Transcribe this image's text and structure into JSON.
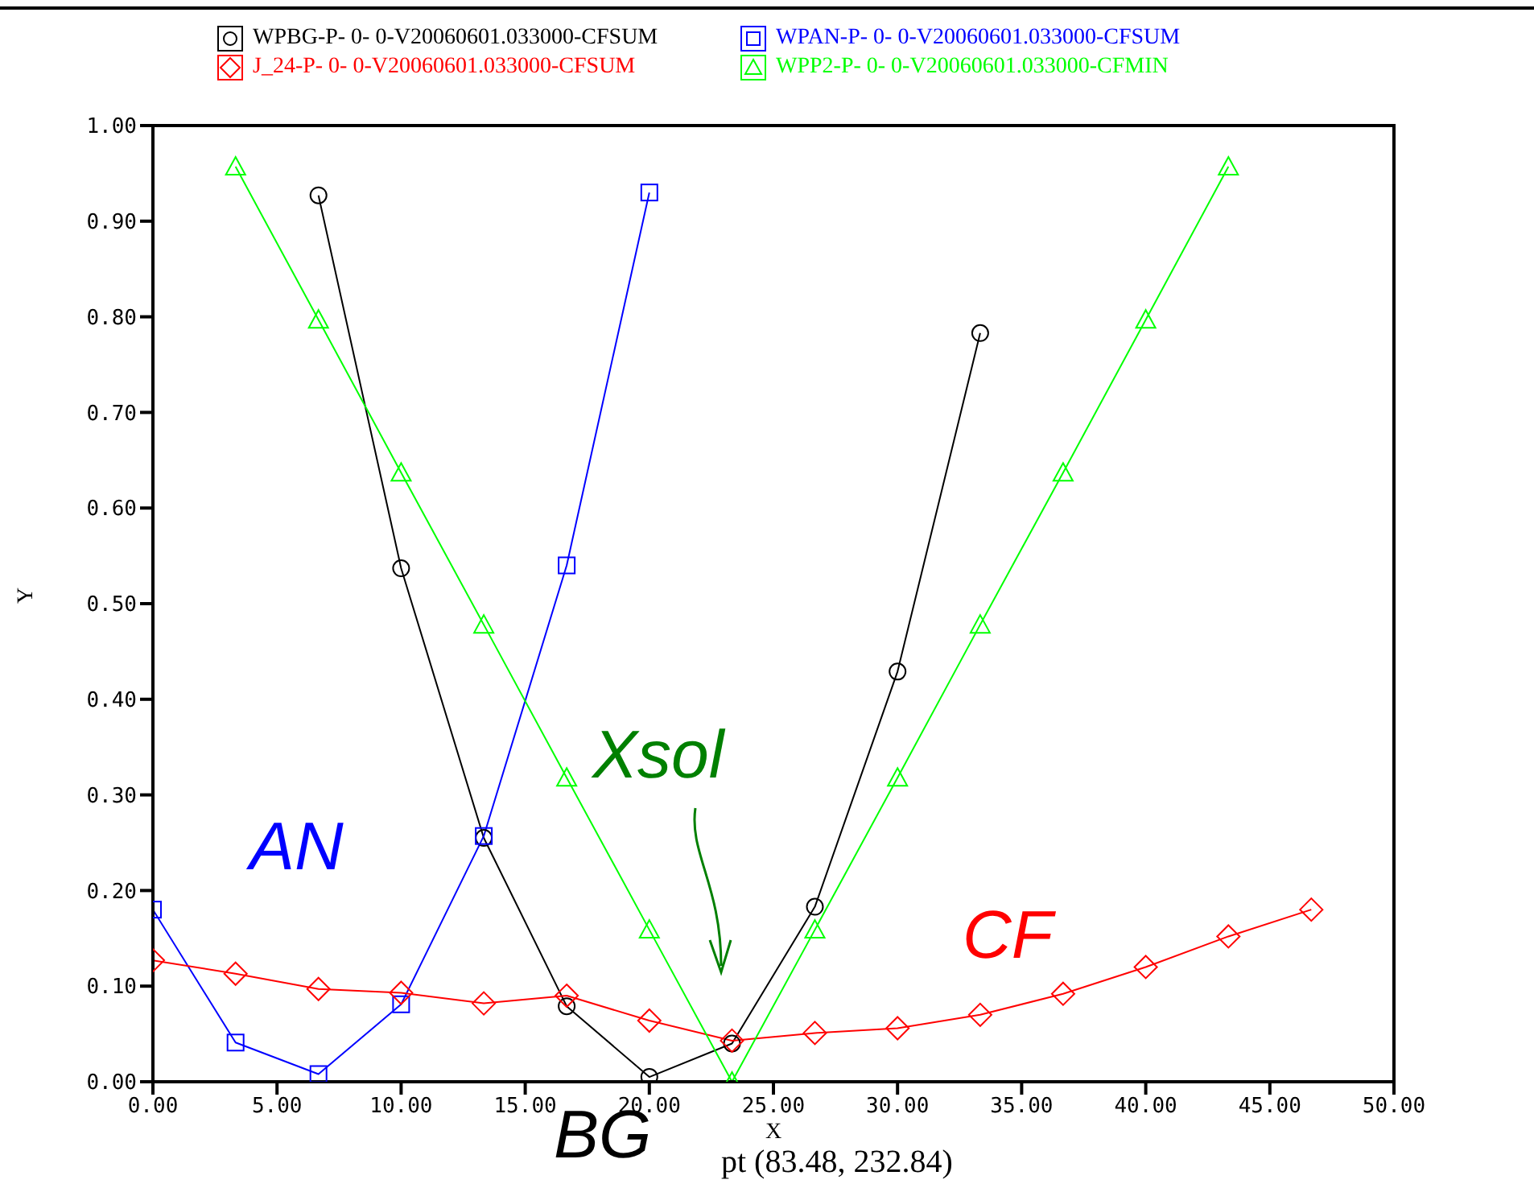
{
  "chart_data": {
    "type": "line",
    "xlabel": "X",
    "ylabel": "Y",
    "annotations": [
      "AN",
      "Xsol",
      "CF",
      "BG",
      "pt (83.48, 232.84)"
    ],
    "xlim": [
      0,
      50
    ],
    "xticks": [
      {
        "value": 0,
        "label": "0.00"
      },
      {
        "value": 5,
        "label": "5.00"
      },
      {
        "value": 10,
        "label": "10.00"
      },
      {
        "value": 15,
        "label": "15.00"
      },
      {
        "value": 20,
        "label": "20.00"
      },
      {
        "value": 25,
        "label": "25.00"
      },
      {
        "value": 30,
        "label": "30.00"
      },
      {
        "value": 35,
        "label": "35.00"
      },
      {
        "value": 40,
        "label": "40.00"
      },
      {
        "value": 45,
        "label": "45.00"
      },
      {
        "value": 50,
        "label": "50.00"
      }
    ],
    "ylim": [
      0,
      1
    ],
    "yticks": [
      {
        "value": 0,
        "label": "0.00"
      },
      {
        "value": 0.1,
        "label": "0.10"
      },
      {
        "value": 0.2,
        "label": "0.20"
      },
      {
        "value": 0.3,
        "label": "0.30"
      },
      {
        "value": 0.4,
        "label": "0.40"
      },
      {
        "value": 0.5,
        "label": "0.50"
      },
      {
        "value": 0.6,
        "label": "0.60"
      },
      {
        "value": 0.7,
        "label": "0.70"
      },
      {
        "value": 0.8,
        "label": "0.80"
      },
      {
        "value": 0.9,
        "label": "0.90"
      },
      {
        "value": 1,
        "label": "1.00"
      }
    ],
    "grid": false,
    "legend": "top",
    "line_style": "solid",
    "series": [
      {
        "name": "WPBG-P- 0- 0-V20060601.033000-CFSUM",
        "color": "#000000",
        "marker": "circle",
        "x": [
          6.67,
          10,
          13.33,
          16.67,
          20,
          23.33,
          26.67,
          30,
          33.33
        ],
        "values": [
          0.927,
          0.537,
          0.255,
          0.079,
          0.005,
          0.04,
          0.183,
          0.429,
          0.783
        ]
      },
      {
        "name": "WPAN-P- 0- 0-V20060601.033000-CFSUM",
        "color": "#0000ff",
        "marker": "square",
        "x": [
          0,
          3.33,
          6.67,
          10,
          13.33,
          16.67,
          20
        ],
        "values": [
          0.18,
          0.041,
          0.008,
          0.081,
          0.257,
          0.54,
          0.93
        ]
      },
      {
        "name": "J_24-P- 0- 0-V20060601.033000-CFSUM",
        "color": "#ff0000",
        "marker": "diamond",
        "x": [
          0,
          3.33,
          6.67,
          10,
          13.33,
          16.67,
          20,
          23.33,
          26.67,
          30,
          33.33,
          36.67,
          40,
          43.33,
          46.67
        ],
        "values": [
          0.127,
          0.113,
          0.097,
          0.093,
          0.082,
          0.09,
          0.064,
          0.043,
          0.051,
          0.056,
          0.07,
          0.092,
          0.12,
          0.152,
          0.18
        ]
      },
      {
        "name": "WPP2-P- 0- 0-V20060601.033000-CFMIN",
        "color": "#00ff00",
        "marker": "triangle",
        "x": [
          3.33,
          6.67,
          10,
          13.33,
          16.67,
          20,
          23.33,
          26.67,
          30,
          33.33,
          36.67,
          40,
          43.33
        ],
        "values": [
          0.957,
          0.797,
          0.637,
          0.478,
          0.318,
          0.159,
          0.0,
          0.159,
          0.318,
          0.478,
          0.637,
          0.797,
          0.957
        ]
      }
    ]
  }
}
